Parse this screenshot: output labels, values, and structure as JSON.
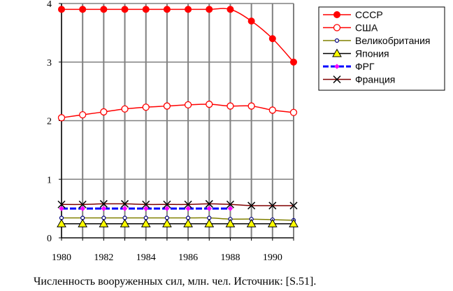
{
  "caption": "Численность вооруженных сил, млн. чел. Источник: [S.51].",
  "chart_data": {
    "type": "line",
    "x": [
      1980,
      1981,
      1982,
      1983,
      1984,
      1985,
      1986,
      1987,
      1988,
      1989,
      1990,
      1991
    ],
    "xticks": [
      1980,
      1982,
      1984,
      1986,
      1988,
      1990
    ],
    "xlim": [
      1980,
      1991
    ],
    "ylim": [
      0,
      4
    ],
    "yticks": [
      0,
      1,
      2,
      3,
      4
    ],
    "grid": true,
    "legend_position": "top-right",
    "series": [
      {
        "name": "СССР",
        "color": "#ff0000",
        "marker": "filled-circle",
        "values": [
          3.9,
          3.9,
          3.9,
          3.9,
          3.9,
          3.9,
          3.9,
          3.9,
          3.9,
          3.7,
          3.4,
          3.0
        ]
      },
      {
        "name": "США",
        "color": "#ff0000",
        "marker": "open-circle",
        "values": [
          2.05,
          2.1,
          2.15,
          2.2,
          2.23,
          2.25,
          2.27,
          2.28,
          2.25,
          2.25,
          2.18,
          2.14
        ]
      },
      {
        "name": "Великобритания",
        "color": "#808000",
        "marker": "small-circle",
        "values": [
          0.34,
          0.34,
          0.34,
          0.34,
          0.34,
          0.34,
          0.34,
          0.34,
          0.32,
          0.32,
          0.31,
          0.3
        ]
      },
      {
        "name": "Япония",
        "color": "#000000",
        "marker_color": "#ffff00",
        "marker": "triangle",
        "values": [
          0.24,
          0.24,
          0.24,
          0.24,
          0.24,
          0.24,
          0.24,
          0.24,
          0.24,
          0.24,
          0.24,
          0.24
        ]
      },
      {
        "name": "ФРГ",
        "color": "#0000ff",
        "marker_color": "#ff00ff",
        "marker": "diamond",
        "dashed": true,
        "values": [
          0.5,
          0.5,
          0.5,
          0.5,
          0.5,
          0.5,
          0.5,
          0.5,
          0.5,
          null,
          null,
          null
        ]
      },
      {
        "name": "Франция",
        "color": "#800000",
        "marker_color": "#000000",
        "marker": "x",
        "values": [
          0.57,
          0.57,
          0.58,
          0.58,
          0.57,
          0.57,
          0.57,
          0.58,
          0.57,
          0.55,
          0.55,
          0.55
        ]
      }
    ]
  }
}
